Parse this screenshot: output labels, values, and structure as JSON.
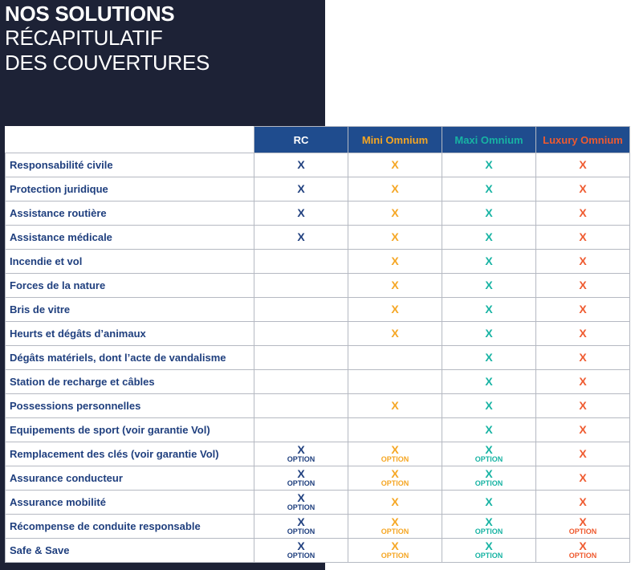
{
  "title": {
    "line1": "NOS SOLUTIONS",
    "line2": "RÉCAPITULATIF",
    "line3": "DES COUVERTURES"
  },
  "columns": [
    {
      "label": "RC",
      "color": "#ffffff",
      "mark_color": "#1f3f7e"
    },
    {
      "label": "Mini Omnium",
      "color": "#f5a623",
      "mark_color": "#f5a623"
    },
    {
      "label": "Maxi Omnium",
      "color": "#17b3a3",
      "mark_color": "#17b3a3"
    },
    {
      "label": "Luxury Omnium",
      "color": "#ef5a2f",
      "mark_color": "#ef5a2f"
    }
  ],
  "mark": "X",
  "option_label": "OPTION",
  "rows": [
    {
      "label": "Responsabilité civile",
      "cells": [
        "X",
        "X",
        "X",
        "X"
      ]
    },
    {
      "label": "Protection juridique",
      "cells": [
        "X",
        "X",
        "X",
        "X"
      ]
    },
    {
      "label": "Assistance routière",
      "cells": [
        "X",
        "X",
        "X",
        "X"
      ]
    },
    {
      "label": "Assistance médicale",
      "cells": [
        "X",
        "X",
        "X",
        "X"
      ]
    },
    {
      "label": "Incendie et vol",
      "cells": [
        "",
        "X",
        "X",
        "X"
      ]
    },
    {
      "label": "Forces de la nature",
      "cells": [
        "",
        "X",
        "X",
        "X"
      ]
    },
    {
      "label": "Bris de vitre",
      "cells": [
        "",
        "X",
        "X",
        "X"
      ]
    },
    {
      "label": "Heurts et dégâts d’animaux",
      "cells": [
        "",
        "X",
        "X",
        "X"
      ]
    },
    {
      "label": "Dégâts matériels, dont l’acte de vandalisme",
      "cells": [
        "",
        "",
        "X",
        "X"
      ]
    },
    {
      "label": "Station de recharge et câbles",
      "cells": [
        "",
        "",
        "X",
        "X"
      ]
    },
    {
      "label": "Possessions personnelles",
      "cells": [
        "",
        "X",
        "X",
        "X"
      ]
    },
    {
      "label": "Equipements de sport (voir garantie Vol)",
      "cells": [
        "",
        "",
        "X",
        "X"
      ]
    },
    {
      "label": "Remplacement des clés (voir garantie Vol)",
      "cells": [
        "X OPTION",
        "X OPTION",
        "X OPTION",
        "X"
      ]
    },
    {
      "label": "Assurance conducteur",
      "cells": [
        "X OPTION",
        "X OPTION",
        "X OPTION",
        "X"
      ]
    },
    {
      "label": "Assurance mobilité",
      "cells": [
        "X OPTION",
        "X",
        "X",
        "X"
      ]
    },
    {
      "label": "Récompense de conduite responsable",
      "cells": [
        "X OPTION",
        "X OPTION",
        "X OPTION",
        "X OPTION"
      ]
    },
    {
      "label": "Safe & Save",
      "cells": [
        "X OPTION",
        "X OPTION",
        "X OPTION",
        "X OPTION"
      ]
    }
  ]
}
